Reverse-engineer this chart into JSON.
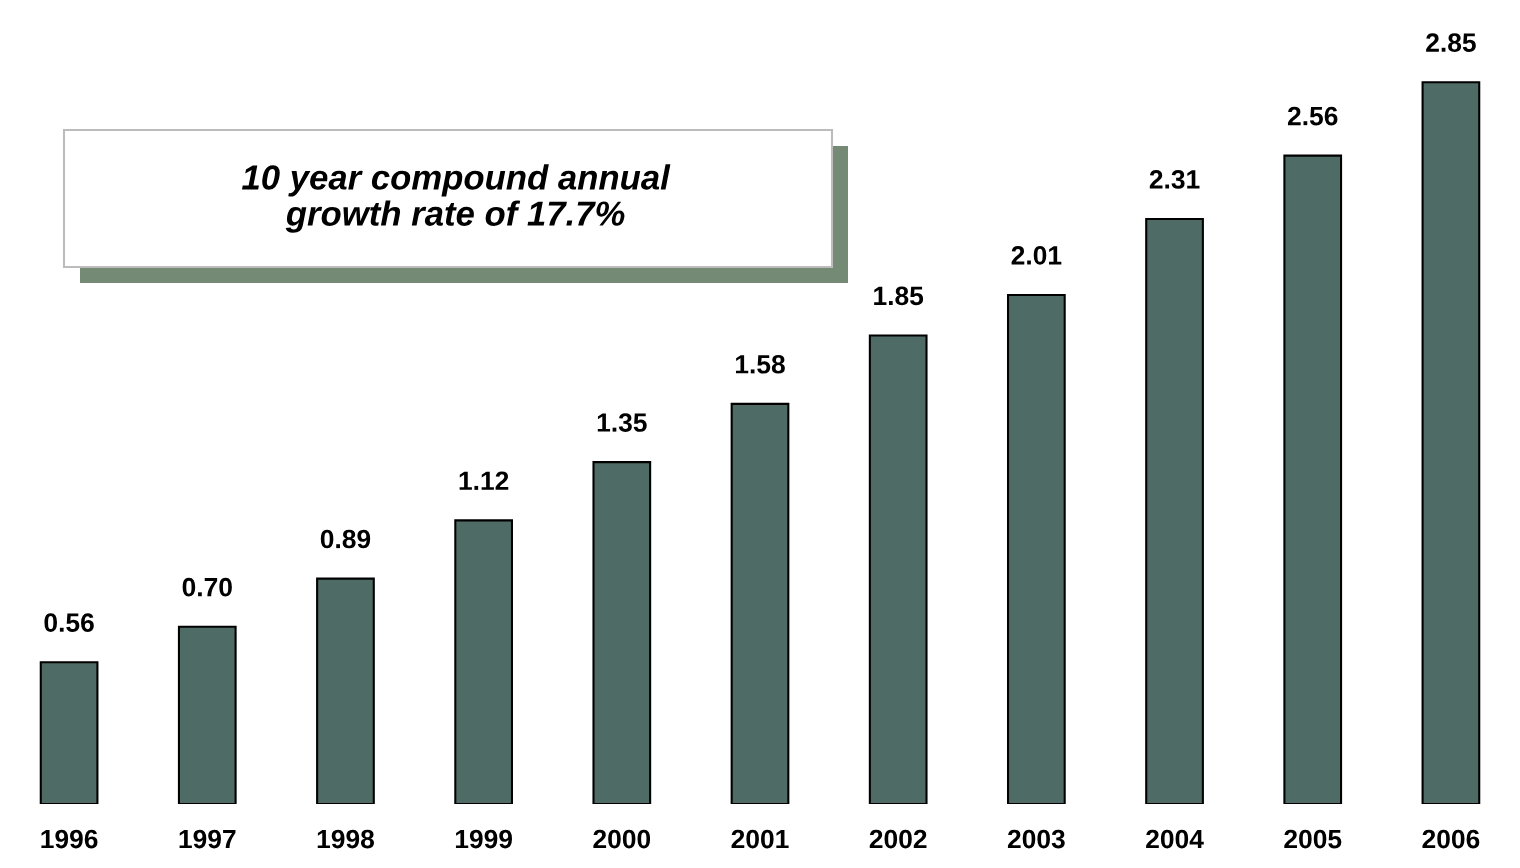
{
  "chart_data": {
    "type": "bar",
    "categories": [
      "1996",
      "1997",
      "1998",
      "1999",
      "2000",
      "2001",
      "2002",
      "2003",
      "2004",
      "2005",
      "2006"
    ],
    "values": [
      0.56,
      0.7,
      0.89,
      1.12,
      1.35,
      1.58,
      1.85,
      2.01,
      2.31,
      2.56,
      2.85
    ],
    "value_labels": [
      "0.56",
      "0.70",
      "0.89",
      "1.12",
      "1.35",
      "1.58",
      "1.85",
      "2.01",
      "2.31",
      "2.56",
      "2.85"
    ],
    "color": "#4f6b65",
    "annotations": [
      "10 year compound annual\ngrowth rate of 17.7%"
    ],
    "tick_labels": "x",
    "grid": false,
    "legend": false
  }
}
